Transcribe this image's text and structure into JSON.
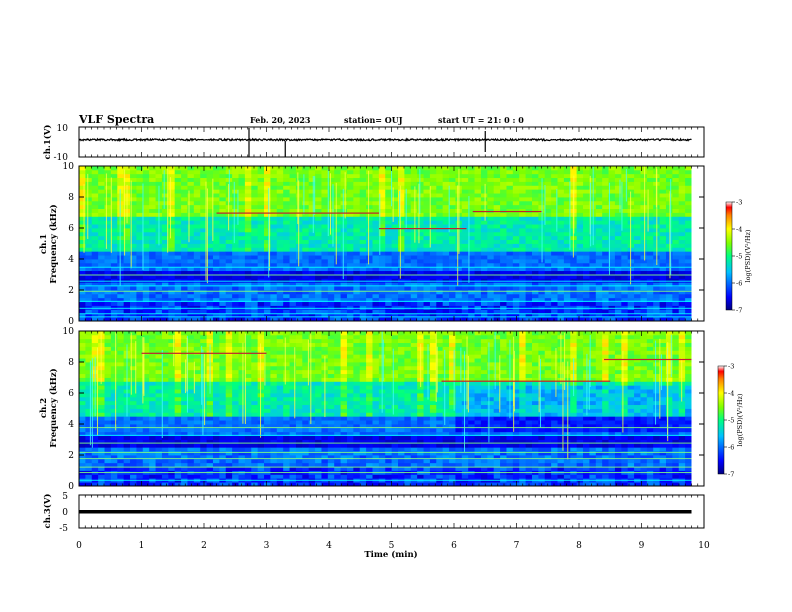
{
  "header": {
    "title": "VLF Spectra",
    "date": "Feb. 20, 2023",
    "station": "station= OUJ",
    "start": "start  UT  =   21: 0  : 0"
  },
  "chart_data": [
    {
      "type": "line",
      "panel": "ch1-waveform",
      "ylabel": "ch.1(V)",
      "ylim": [
        -10,
        10
      ],
      "yticks": [
        10,
        -10
      ],
      "xlim": [
        0,
        10
      ],
      "series": [
        {
          "values_desc": "",
          "x": [
            0,
            2.72,
            2.73,
            3.3,
            4.0,
            6.5,
            6.55,
            9.0,
            9.8
          ],
          "y": [
            3.0,
            3.0,
            -8.0,
            2.5,
            3.0,
            5.0,
            1.0,
            3.0,
            3.0
          ]
        }
      ]
    },
    {
      "type": "heatmap",
      "panel": "ch1-spectrogram",
      "ylabel_line1": "ch.1",
      "ylabel_line2": "Frequency  (kHz)",
      "ylim": [
        0,
        10
      ],
      "yticks": [
        "0",
        "2",
        "4",
        "6",
        "8",
        "10"
      ],
      "xlim": [
        0,
        10
      ],
      "colorbar": {
        "label": "log(PSD)(V²/Hz)",
        "range": [
          -7,
          -3
        ],
        "ticks": [
          "-3",
          "-4",
          "-5",
          "-6",
          "-7"
        ]
      }
    },
    {
      "type": "heatmap",
      "panel": "ch2-spectrogram",
      "ylabel_line1": "ch.2",
      "ylabel_line2": "Frequency  (kHz)",
      "ylim": [
        0,
        10
      ],
      "yticks": [
        "0",
        "2",
        "4",
        "6",
        "8",
        "10"
      ],
      "xlim": [
        0,
        10
      ],
      "colorbar": {
        "label": "log(PSD)(V²/Hz)",
        "range": [
          -7,
          -3
        ],
        "ticks": [
          "-3",
          "-4",
          "-5",
          "-6",
          "-7"
        ]
      }
    },
    {
      "type": "line",
      "panel": "ch3-waveform",
      "ylabel": "ch.3(V)",
      "ylim": [
        -5,
        5
      ],
      "yticks": [
        "5",
        "0",
        "-5"
      ],
      "xlim": [
        0,
        10
      ],
      "series": [
        {
          "x": [
            0,
            9.8
          ],
          "y": [
            0,
            0
          ]
        }
      ]
    }
  ],
  "xaxis": {
    "label": "Time  (min)",
    "ticks": [
      "0",
      "1",
      "2",
      "3",
      "4",
      "5",
      "6",
      "7",
      "8",
      "9",
      "10"
    ],
    "data_end_min": 9.8
  },
  "colors": {
    "low": "#00007f",
    "mid": "#00ff80",
    "high": "#ff0000"
  }
}
